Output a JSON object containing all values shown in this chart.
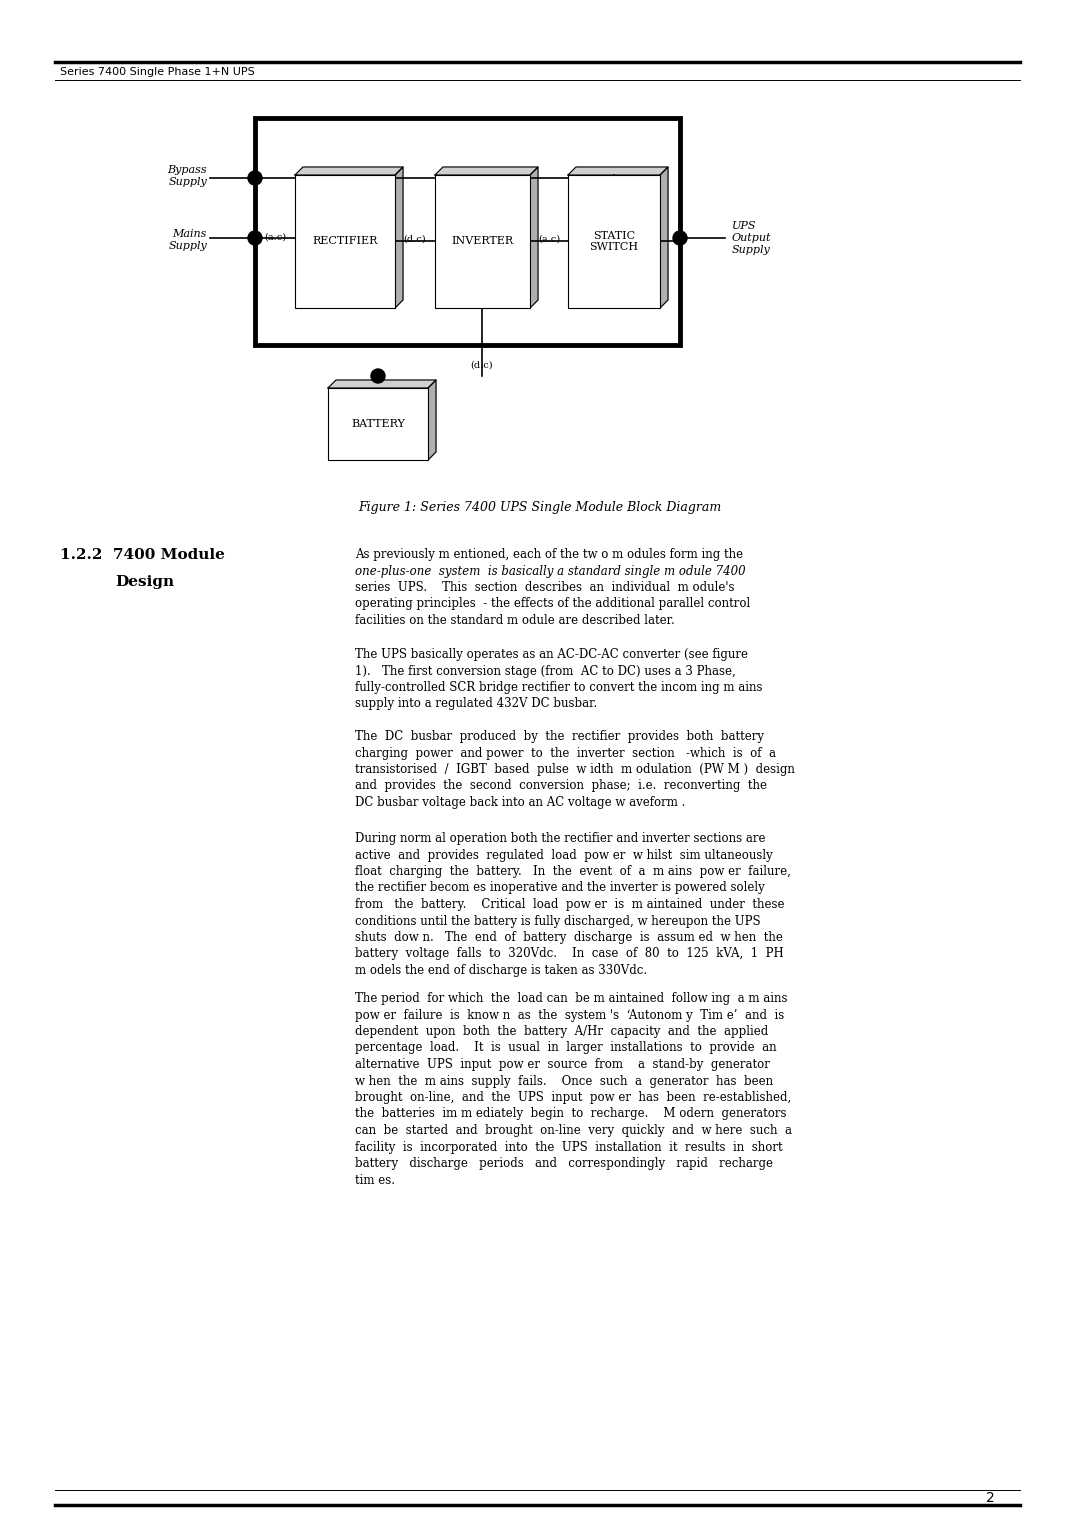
{
  "page_title": "Series 7400 Single Phase 1+N UPS",
  "page_number": "2",
  "figure_caption": "Figure 1: Series 7400 UPS Single Module Block Diagram",
  "bg_color": "#ffffff"
}
